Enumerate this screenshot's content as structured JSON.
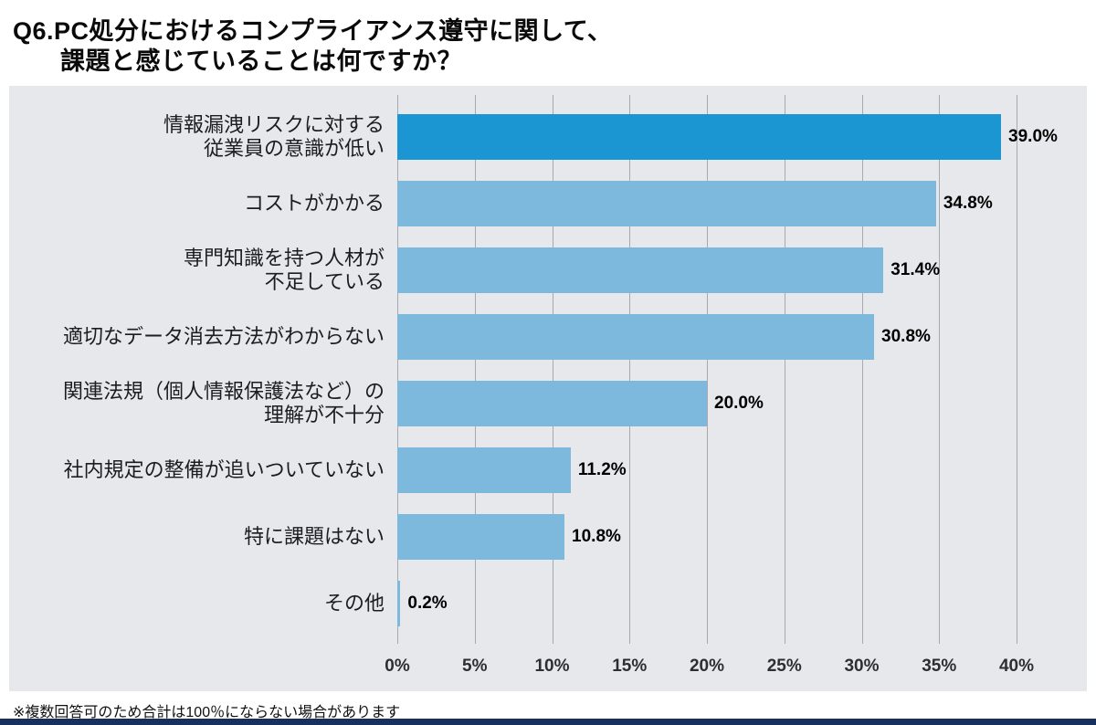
{
  "page": {
    "title_line1": "Q6.PC処分におけるコンプライアンス遵守に関して、",
    "title_line2": "課題と感じていることは何ですか？",
    "note": "※複数回答可のため合計は100％にならない場合があります"
  },
  "chart_data": {
    "type": "bar",
    "orientation": "horizontal",
    "title": "Q6.PC処分におけるコンプライアンス遵守に関して、課題と感じていることは何ですか？",
    "categories": [
      [
        "情報漏洩リスクに対する",
        "従業員の意識が低い"
      ],
      [
        "コストがかかる"
      ],
      [
        "専門知識を持つ人材が",
        "不足している"
      ],
      [
        "適切なデータ消去方法がわからない"
      ],
      [
        "関連法規（個人情報保護法など）の",
        "理解が不十分"
      ],
      [
        "社内規定の整備が追いついていない"
      ],
      [
        "特に課題はない"
      ],
      [
        "その他"
      ]
    ],
    "values": [
      39.0,
      34.8,
      31.4,
      30.8,
      20.0,
      11.2,
      10.8,
      0.2
    ],
    "value_labels": [
      "39.0%",
      "34.8%",
      "31.4%",
      "30.8%",
      "20.0%",
      "11.2%",
      "10.8%",
      "0.2%"
    ],
    "xlim": [
      0,
      40
    ],
    "xticks": [
      0,
      5,
      10,
      15,
      20,
      25,
      30,
      35,
      40
    ],
    "xtick_labels": [
      "0%",
      "5%",
      "10%",
      "15%",
      "20%",
      "25%",
      "30%",
      "35%",
      "40%"
    ],
    "grid": "vertical",
    "legend": null,
    "colors": {
      "bar_primary": "#1b96d2",
      "bar_secondary": "#7db9dc",
      "panel_bg": "#e6e8eb",
      "gridline": "#a6a9ae",
      "bottom_strip": "#17305c"
    }
  }
}
